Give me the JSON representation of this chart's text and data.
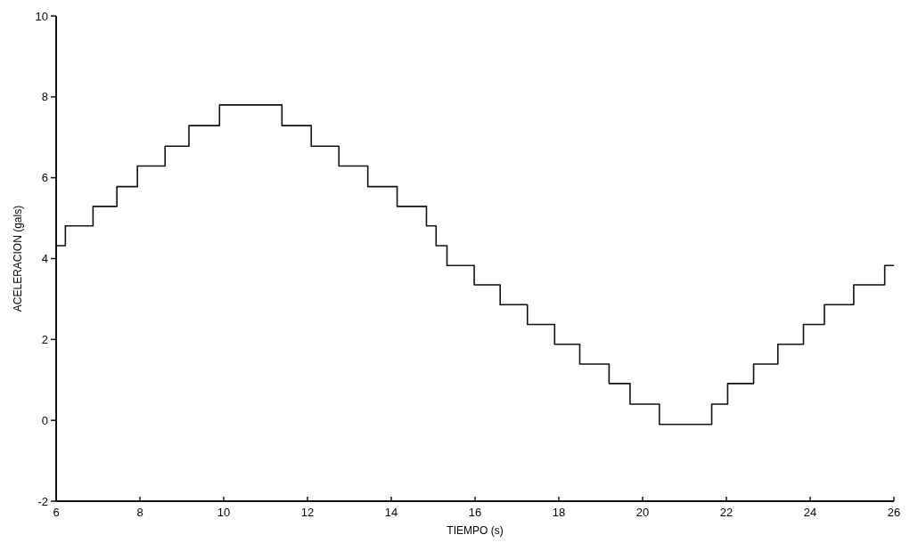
{
  "chart_data": {
    "type": "step",
    "xlabel": "TIEMPO (s)",
    "ylabel": "ACELERACION (gals)",
    "x": [
      6,
      6.22,
      6.88,
      7.45,
      7.94,
      8.6,
      9.17,
      9.9,
      11.39,
      12.09,
      12.75,
      13.44,
      14.14,
      14.84,
      15.07,
      15.33,
      15.98,
      16.6,
      17.25,
      17.9,
      18.5,
      19.2,
      19.7,
      20.4,
      21.65,
      22.03,
      22.65,
      23.23,
      23.84,
      24.34,
      25.04,
      25.78,
      26
    ],
    "values": [
      4.32,
      4.81,
      5.29,
      5.78,
      6.29,
      6.78,
      7.29,
      7.8,
      7.29,
      6.78,
      6.29,
      5.78,
      5.29,
      4.81,
      4.32,
      3.83,
      3.35,
      2.86,
      2.37,
      1.88,
      1.39,
      0.91,
      0.4,
      -0.1,
      0.4,
      0.91,
      1.39,
      1.88,
      2.37,
      2.86,
      3.35,
      3.83,
      3.83
    ],
    "color": "#111111",
    "line_style": "solid",
    "marker": "none",
    "xlim": [
      6,
      26
    ],
    "xticks": [
      6,
      8,
      10,
      12,
      14,
      16,
      18,
      20,
      22,
      24,
      26
    ],
    "ylim": [
      -2,
      10
    ],
    "yticks": [
      -2,
      0,
      2,
      4,
      6,
      8,
      10
    ],
    "grid": false
  }
}
